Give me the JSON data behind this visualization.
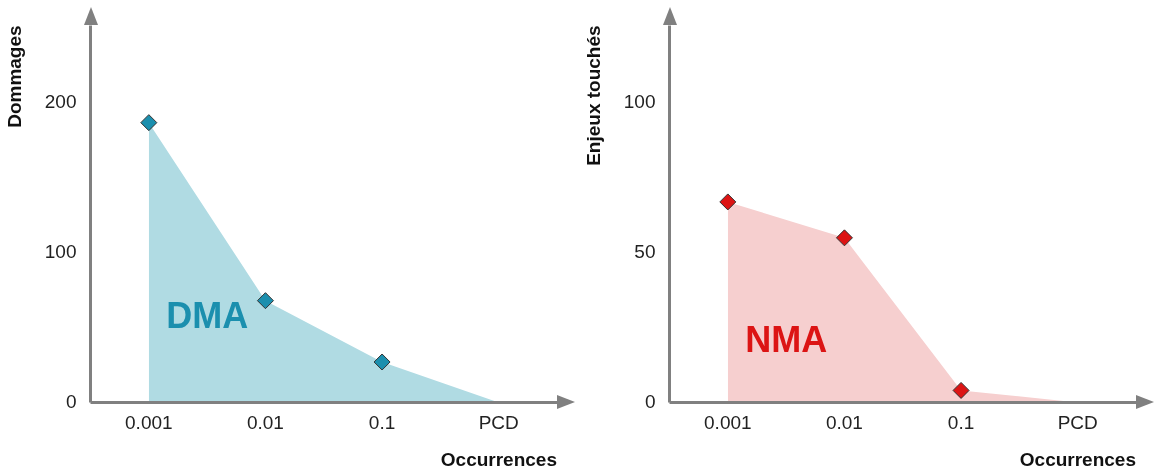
{
  "chart_data": [
    {
      "type": "area",
      "xlabel": "Occurrences",
      "ylabel": "Dommages",
      "categories": [
        "0.001",
        "0.01",
        "0.1",
        "PCD"
      ],
      "ylim": [
        0,
        252
      ],
      "yticks": [
        0,
        100,
        200
      ],
      "grid": false,
      "legend": false,
      "series": [
        {
          "name": "DMA",
          "color": "#b0dbe3",
          "values": [
            187,
            68,
            27,
            0
          ]
        },
        {
          "type": "scatter",
          "marker": "diamond",
          "color": "#1b8fae",
          "x": [
            "0.001",
            "0.01",
            "0.1"
          ],
          "values": [
            187,
            68,
            27
          ]
        }
      ]
    },
    {
      "type": "area",
      "xlabel": "Occurrences",
      "ylabel": "Enjeux touchés",
      "categories": [
        "0.001",
        "0.01",
        "0.1",
        "PCD"
      ],
      "ylim": [
        0,
        126
      ],
      "yticks": [
        0,
        50,
        100
      ],
      "grid": false,
      "legend": false,
      "series": [
        {
          "name": "NMA",
          "color": "#f6cfcf",
          "values": [
            67,
            55,
            4,
            0
          ]
        },
        {
          "type": "scatter",
          "marker": "diamond",
          "color": "#dc1414",
          "x": [
            "0.001",
            "0.01",
            "0.1"
          ],
          "values": [
            67,
            55,
            4
          ]
        }
      ]
    }
  ]
}
